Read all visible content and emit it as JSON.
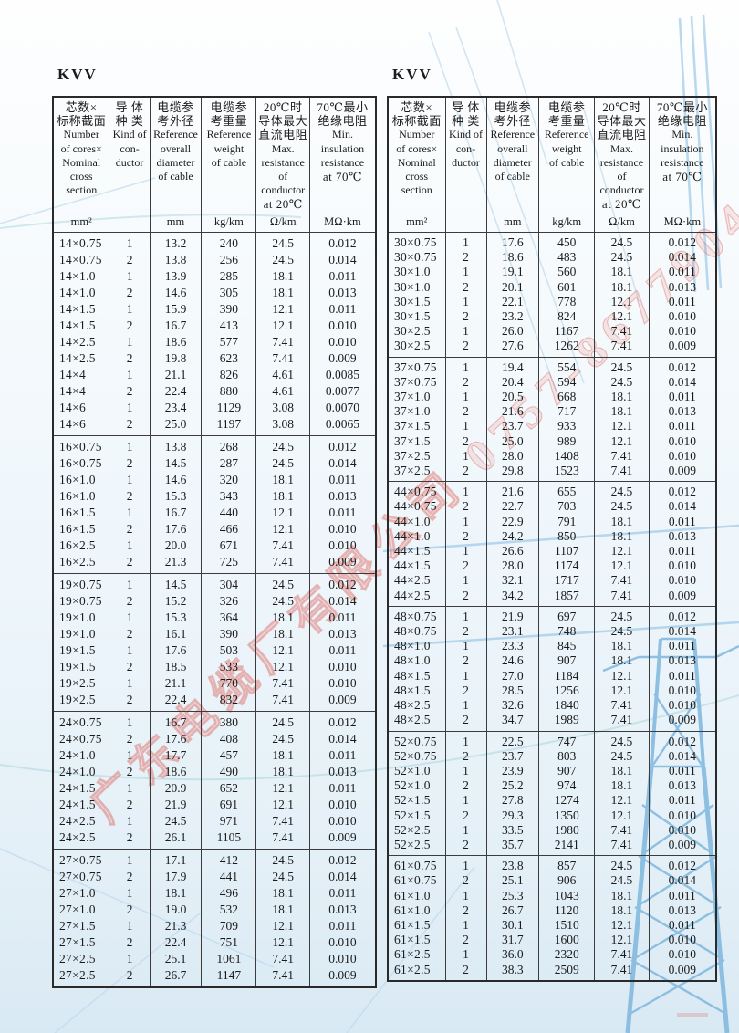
{
  "page": {
    "watermark": "广东电缆厂有限公司 0757-8677904",
    "accent_red": "#de554e",
    "tower_blue": "#7fb7de",
    "faint_line_blue": "#bcd9ee"
  },
  "header": {
    "columns": [
      {
        "key": "cores",
        "lines": [
          "芯数×",
          "标称截面",
          "Number",
          "of cores×",
          "Nominal",
          "cross",
          "section"
        ],
        "unit": "mm²"
      },
      {
        "key": "conductor",
        "lines": [
          "导 体",
          "种 类",
          "Kind of",
          "con-",
          "ductor"
        ],
        "unit": ""
      },
      {
        "key": "diameter",
        "lines": [
          "电缆参",
          "考外径",
          "Reference",
          "overall",
          "diameter",
          "of cable"
        ],
        "unit": "mm"
      },
      {
        "key": "weight",
        "lines": [
          "电缆参",
          "考重量",
          "Reference",
          "weight",
          "of cable"
        ],
        "unit": "kg/km"
      },
      {
        "key": "resistance",
        "lines": [
          "20℃时",
          "导体最大",
          "直流电阻",
          "Max.",
          "resistance",
          "of",
          "conductor",
          "at 20℃"
        ],
        "unit": "Ω/km"
      },
      {
        "key": "insulation",
        "lines": [
          "70℃最小",
          "绝缘电阻",
          "Min.",
          "insulation",
          "resistance",
          "at 70℃"
        ],
        "unit": "MΩ·km"
      }
    ]
  },
  "left_table": {
    "title": "KVV",
    "groups": [
      {
        "rows": [
          [
            "14×0.75",
            "1",
            "13.2",
            "240",
            "24.5",
            "0.012"
          ],
          [
            "14×0.75",
            "2",
            "13.8",
            "256",
            "24.5",
            "0.014"
          ],
          [
            "14×1.0",
            "1",
            "13.9",
            "285",
            "18.1",
            "0.011"
          ],
          [
            "14×1.0",
            "2",
            "14.6",
            "305",
            "18.1",
            "0.013"
          ],
          [
            "14×1.5",
            "1",
            "15.9",
            "390",
            "12.1",
            "0.011"
          ],
          [
            "14×1.5",
            "2",
            "16.7",
            "413",
            "12.1",
            "0.010"
          ],
          [
            "14×2.5",
            "1",
            "18.6",
            "577",
            "7.41",
            "0.010"
          ],
          [
            "14×2.5",
            "2",
            "19.8",
            "623",
            "7.41",
            "0.009"
          ],
          [
            "14×4",
            "1",
            "21.1",
            "826",
            "4.61",
            "0.0085"
          ],
          [
            "14×4",
            "2",
            "22.4",
            "880",
            "4.61",
            "0.0077"
          ],
          [
            "14×6",
            "1",
            "23.4",
            "1129",
            "3.08",
            "0.0070"
          ],
          [
            "14×6",
            "2",
            "25.0",
            "1197",
            "3.08",
            "0.0065"
          ]
        ]
      },
      {
        "rows": [
          [
            "16×0.75",
            "1",
            "13.8",
            "268",
            "24.5",
            "0.012"
          ],
          [
            "16×0.75",
            "2",
            "14.5",
            "287",
            "24.5",
            "0.014"
          ],
          [
            "16×1.0",
            "1",
            "14.6",
            "320",
            "18.1",
            "0.011"
          ],
          [
            "16×1.0",
            "2",
            "15.3",
            "343",
            "18.1",
            "0.013"
          ],
          [
            "16×1.5",
            "1",
            "16.7",
            "440",
            "12.1",
            "0.011"
          ],
          [
            "16×1.5",
            "2",
            "17.6",
            "466",
            "12.1",
            "0.010"
          ],
          [
            "16×2.5",
            "1",
            "20.0",
            "671",
            "7.41",
            "0.010"
          ],
          [
            "16×2.5",
            "2",
            "21.3",
            "725",
            "7.41",
            "0.009"
          ]
        ]
      },
      {
        "rows": [
          [
            "19×0.75",
            "1",
            "14.5",
            "304",
            "24.5",
            "0.012"
          ],
          [
            "19×0.75",
            "2",
            "15.2",
            "326",
            "24.5",
            "0.014"
          ],
          [
            "19×1.0",
            "1",
            "15.3",
            "364",
            "18.1",
            "0.011"
          ],
          [
            "19×1.0",
            "2",
            "16.1",
            "390",
            "18.1",
            "0.013"
          ],
          [
            "19×1.5",
            "1",
            "17.6",
            "503",
            "12.1",
            "0.011"
          ],
          [
            "19×1.5",
            "2",
            "18.5",
            "533",
            "12.1",
            "0.010"
          ],
          [
            "19×2.5",
            "1",
            "21.1",
            "770",
            "7.41",
            "0.010"
          ],
          [
            "19×2.5",
            "2",
            "22.4",
            "832",
            "7.41",
            "0.009"
          ]
        ]
      },
      {
        "rows": [
          [
            "24×0.75",
            "1",
            "16.7",
            "380",
            "24.5",
            "0.012"
          ],
          [
            "24×0.75",
            "2",
            "17.6",
            "408",
            "24.5",
            "0.014"
          ],
          [
            "24×1.0",
            "1",
            "17.7",
            "457",
            "18.1",
            "0.011"
          ],
          [
            "24×1.0",
            "2",
            "18.6",
            "490",
            "18.1",
            "0.013"
          ],
          [
            "24×1.5",
            "1",
            "20.9",
            "652",
            "12.1",
            "0.011"
          ],
          [
            "24×1.5",
            "2",
            "21.9",
            "691",
            "12.1",
            "0.010"
          ],
          [
            "24×2.5",
            "1",
            "24.5",
            "971",
            "7.41",
            "0.010"
          ],
          [
            "24×2.5",
            "2",
            "26.1",
            "1105",
            "7.41",
            "0.009"
          ]
        ]
      },
      {
        "rows": [
          [
            "27×0.75",
            "1",
            "17.1",
            "412",
            "24.5",
            "0.012"
          ],
          [
            "27×0.75",
            "2",
            "17.9",
            "441",
            "24.5",
            "0.014"
          ],
          [
            "27×1.0",
            "1",
            "18.1",
            "496",
            "18.1",
            "0.011"
          ],
          [
            "27×1.0",
            "2",
            "19.0",
            "532",
            "18.1",
            "0.013"
          ],
          [
            "27×1.5",
            "1",
            "21.3",
            "709",
            "12.1",
            "0.011"
          ],
          [
            "27×1.5",
            "2",
            "22.4",
            "751",
            "12.1",
            "0.010"
          ],
          [
            "27×2.5",
            "1",
            "25.1",
            "1061",
            "7.41",
            "0.010"
          ],
          [
            "27×2.5",
            "2",
            "26.7",
            "1147",
            "7.41",
            "0.009"
          ]
        ]
      }
    ]
  },
  "right_table": {
    "title": "KVV",
    "groups": [
      {
        "rows": [
          [
            "30×0.75",
            "1",
            "17.6",
            "450",
            "24.5",
            "0.012"
          ],
          [
            "30×0.75",
            "2",
            "18.6",
            "483",
            "24.5",
            "0.014"
          ],
          [
            "30×1.0",
            "1",
            "19.1",
            "560",
            "18.1",
            "0.011"
          ],
          [
            "30×1.0",
            "2",
            "20.1",
            "601",
            "18.1",
            "0.013"
          ],
          [
            "30×1.5",
            "1",
            "22.1",
            "778",
            "12.1",
            "0.011"
          ],
          [
            "30×1.5",
            "2",
            "23.2",
            "824",
            "12.1",
            "0.010"
          ],
          [
            "30×2.5",
            "1",
            "26.0",
            "1167",
            "7.41",
            "0.010"
          ],
          [
            "30×2.5",
            "2",
            "27.6",
            "1262",
            "7.41",
            "0.009"
          ]
        ]
      },
      {
        "rows": [
          [
            "37×0.75",
            "1",
            "19.4",
            "554",
            "24.5",
            "0.012"
          ],
          [
            "37×0.75",
            "2",
            "20.4",
            "594",
            "24.5",
            "0.014"
          ],
          [
            "37×1.0",
            "1",
            "20.5",
            "668",
            "18.1",
            "0.011"
          ],
          [
            "37×1.0",
            "2",
            "21.6",
            "717",
            "18.1",
            "0.013"
          ],
          [
            "37×1.5",
            "1",
            "23.7",
            "933",
            "12.1",
            "0.011"
          ],
          [
            "37×1.5",
            "2",
            "25.0",
            "989",
            "12.1",
            "0.010"
          ],
          [
            "37×2.5",
            "1",
            "28.0",
            "1408",
            "7.41",
            "0.010"
          ],
          [
            "37×2.5",
            "2",
            "29.8",
            "1523",
            "7.41",
            "0.009"
          ]
        ]
      },
      {
        "rows": [
          [
            "44×0.75",
            "1",
            "21.6",
            "655",
            "24.5",
            "0.012"
          ],
          [
            "44×0.75",
            "2",
            "22.7",
            "703",
            "24.5",
            "0.014"
          ],
          [
            "44×1.0",
            "1",
            "22.9",
            "791",
            "18.1",
            "0.011"
          ],
          [
            "44×1.0",
            "2",
            "24.2",
            "850",
            "18.1",
            "0.013"
          ],
          [
            "44×1.5",
            "1",
            "26.6",
            "1107",
            "12.1",
            "0.011"
          ],
          [
            "44×1.5",
            "2",
            "28.0",
            "1174",
            "12.1",
            "0.010"
          ],
          [
            "44×2.5",
            "1",
            "32.1",
            "1717",
            "7.41",
            "0.010"
          ],
          [
            "44×2.5",
            "2",
            "34.2",
            "1857",
            "7.41",
            "0.009"
          ]
        ]
      },
      {
        "rows": [
          [
            "48×0.75",
            "1",
            "21.9",
            "697",
            "24.5",
            "0.012"
          ],
          [
            "48×0.75",
            "2",
            "23.1",
            "748",
            "24.5",
            "0.014"
          ],
          [
            "48×1.0",
            "1",
            "23.3",
            "845",
            "18.1",
            "0.011"
          ],
          [
            "48×1.0",
            "2",
            "24.6",
            "907",
            "18.1",
            "0.013"
          ],
          [
            "48×1.5",
            "1",
            "27.0",
            "1184",
            "12.1",
            "0.011"
          ],
          [
            "48×1.5",
            "2",
            "28.5",
            "1256",
            "12.1",
            "0.010"
          ],
          [
            "48×2.5",
            "1",
            "32.6",
            "1840",
            "7.41",
            "0.010"
          ],
          [
            "48×2.5",
            "2",
            "34.7",
            "1989",
            "7.41",
            "0.009"
          ]
        ]
      },
      {
        "rows": [
          [
            "52×0.75",
            "1",
            "22.5",
            "747",
            "24.5",
            "0.012"
          ],
          [
            "52×0.75",
            "2",
            "23.7",
            "803",
            "24.5",
            "0.014"
          ],
          [
            "52×1.0",
            "1",
            "23.9",
            "907",
            "18.1",
            "0.011"
          ],
          [
            "52×1.0",
            "2",
            "25.2",
            "974",
            "18.1",
            "0.013"
          ],
          [
            "52×1.5",
            "1",
            "27.8",
            "1274",
            "12.1",
            "0.011"
          ],
          [
            "52×1.5",
            "2",
            "29.3",
            "1350",
            "12.1",
            "0.010"
          ],
          [
            "52×2.5",
            "1",
            "33.5",
            "1980",
            "7.41",
            "0.010"
          ],
          [
            "52×2.5",
            "2",
            "35.7",
            "2141",
            "7.41",
            "0.009"
          ]
        ]
      },
      {
        "rows": [
          [
            "61×0.75",
            "1",
            "23.8",
            "857",
            "24.5",
            "0.012"
          ],
          [
            "61×0.75",
            "2",
            "25.1",
            "906",
            "24.5",
            "0.014"
          ],
          [
            "61×1.0",
            "1",
            "25.3",
            "1043",
            "18.1",
            "0.011"
          ],
          [
            "61×1.0",
            "2",
            "26.7",
            "1120",
            "18.1",
            "0.013"
          ],
          [
            "61×1.5",
            "1",
            "30.1",
            "1510",
            "12.1",
            "0.011"
          ],
          [
            "61×1.5",
            "2",
            "31.7",
            "1600",
            "12.1",
            "0.010"
          ],
          [
            "61×2.5",
            "1",
            "36.0",
            "2320",
            "7.41",
            "0.010"
          ],
          [
            "61×2.5",
            "2",
            "38.3",
            "2509",
            "7.41",
            "0.009"
          ]
        ]
      }
    ]
  }
}
